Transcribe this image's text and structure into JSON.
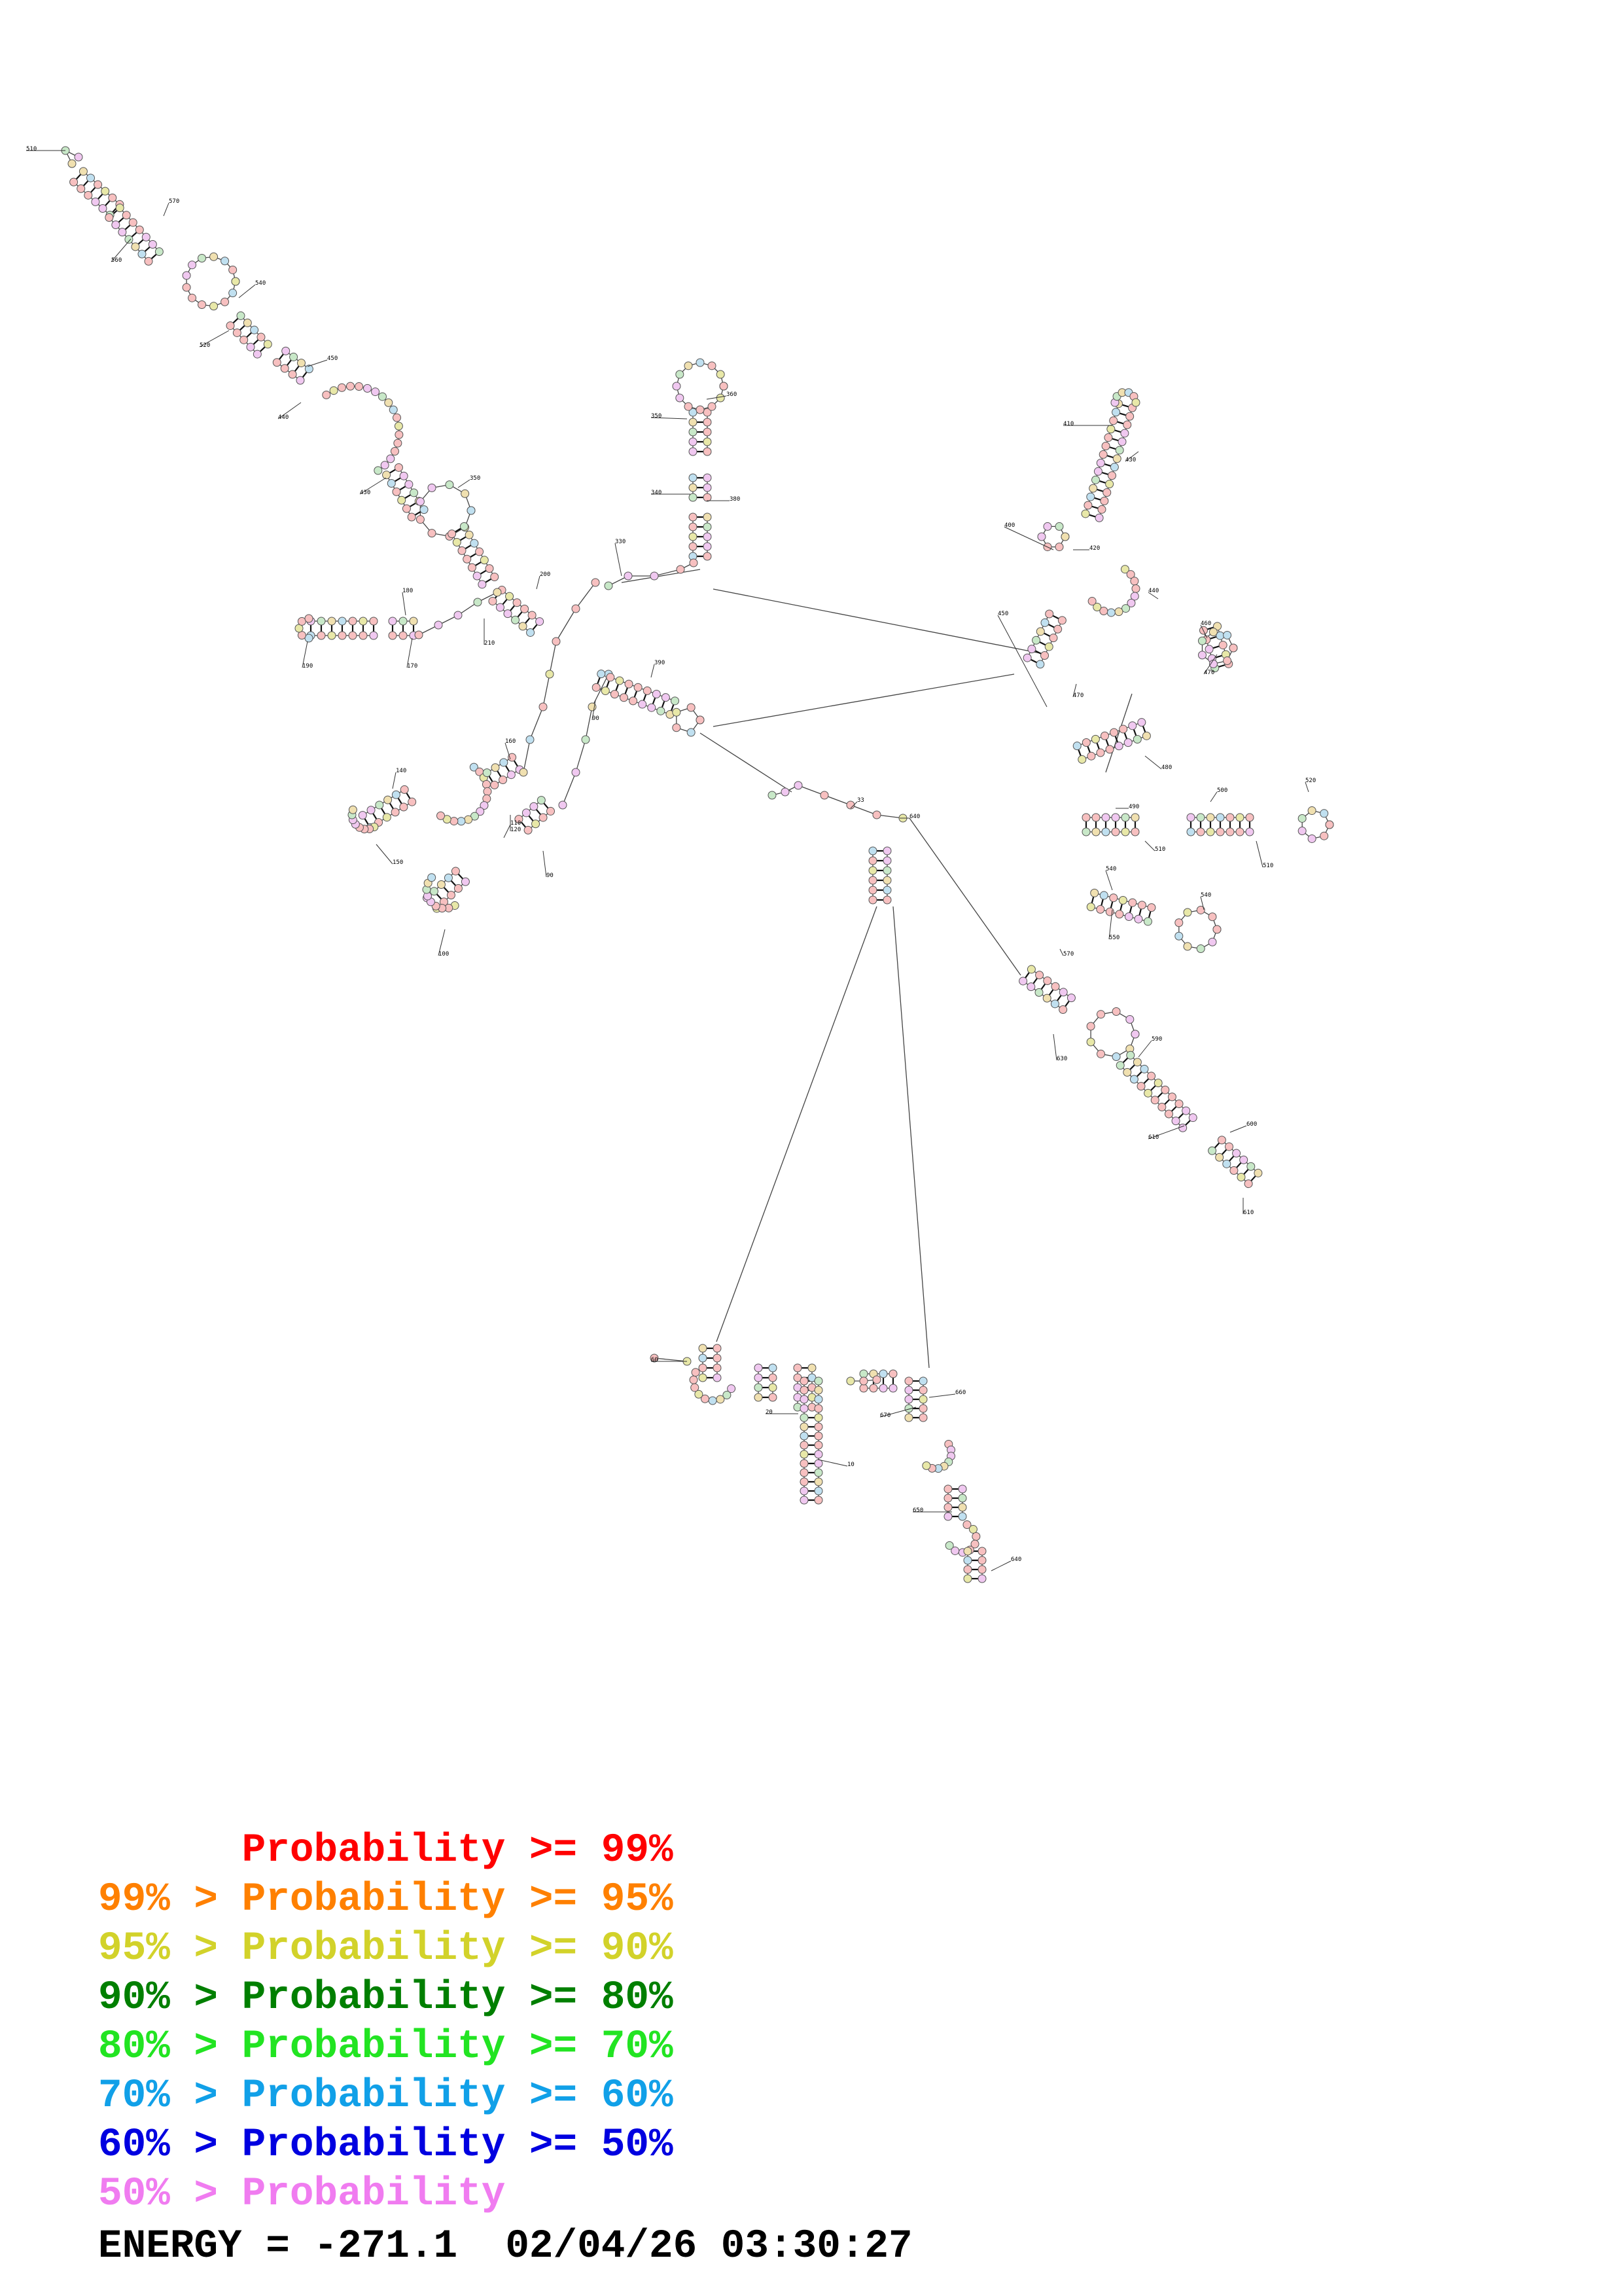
{
  "legend": [
    {
      "prefix": "",
      "label": "Probability >= 99%",
      "color": "#ff0000"
    },
    {
      "prefix": "99% > ",
      "label": "Probability >= 95%",
      "color": "#ff8000"
    },
    {
      "prefix": "95% > ",
      "label": "Probability >= 90%",
      "color": "#d2d22a"
    },
    {
      "prefix": "90% > ",
      "label": "Probability >= 80%",
      "color": "#007f00"
    },
    {
      "prefix": "80% > ",
      "label": "Probability >= 70%",
      "color": "#22e422"
    },
    {
      "prefix": "70% > ",
      "label": "Probability >= 60%",
      "color": "#11a0e8"
    },
    {
      "prefix": "60% > ",
      "label": "Probability >= 50%",
      "color": "#0000e0"
    },
    {
      "prefix": "50% > ",
      "label": "Probability",
      "color": "#f07cf0"
    }
  ],
  "energy": {
    "label": "ENERGY = ",
    "value": "-271.1",
    "timestamp": "02/04/26 03:30:27"
  },
  "numbering": [
    "10",
    "20",
    "33",
    "60",
    "90",
    "100",
    "110",
    "120",
    "130",
    "140",
    "150",
    "160",
    "170",
    "180",
    "190",
    "200",
    "210",
    "230",
    "240",
    "250",
    "260",
    "270",
    "280",
    "285",
    "310",
    "320",
    "330",
    "340",
    "350",
    "360",
    "380",
    "390",
    "400",
    "410",
    "420",
    "430",
    "440",
    "450",
    "460",
    "470",
    "480",
    "490",
    "500",
    "510",
    "520",
    "530",
    "540",
    "550",
    "560",
    "570",
    "580",
    "590",
    "600",
    "610",
    "620",
    "630",
    "640",
    "650",
    "660",
    "670"
  ],
  "palette_fill": [
    "#f7c0c0",
    "#f7c0c0",
    "#f7c0c0",
    "#f0c8f0",
    "#f0c8f0",
    "#c8e8c8",
    "#f0e0b0",
    "#c0e0f0",
    "#f7c0c0",
    "#e8e8a8"
  ]
}
